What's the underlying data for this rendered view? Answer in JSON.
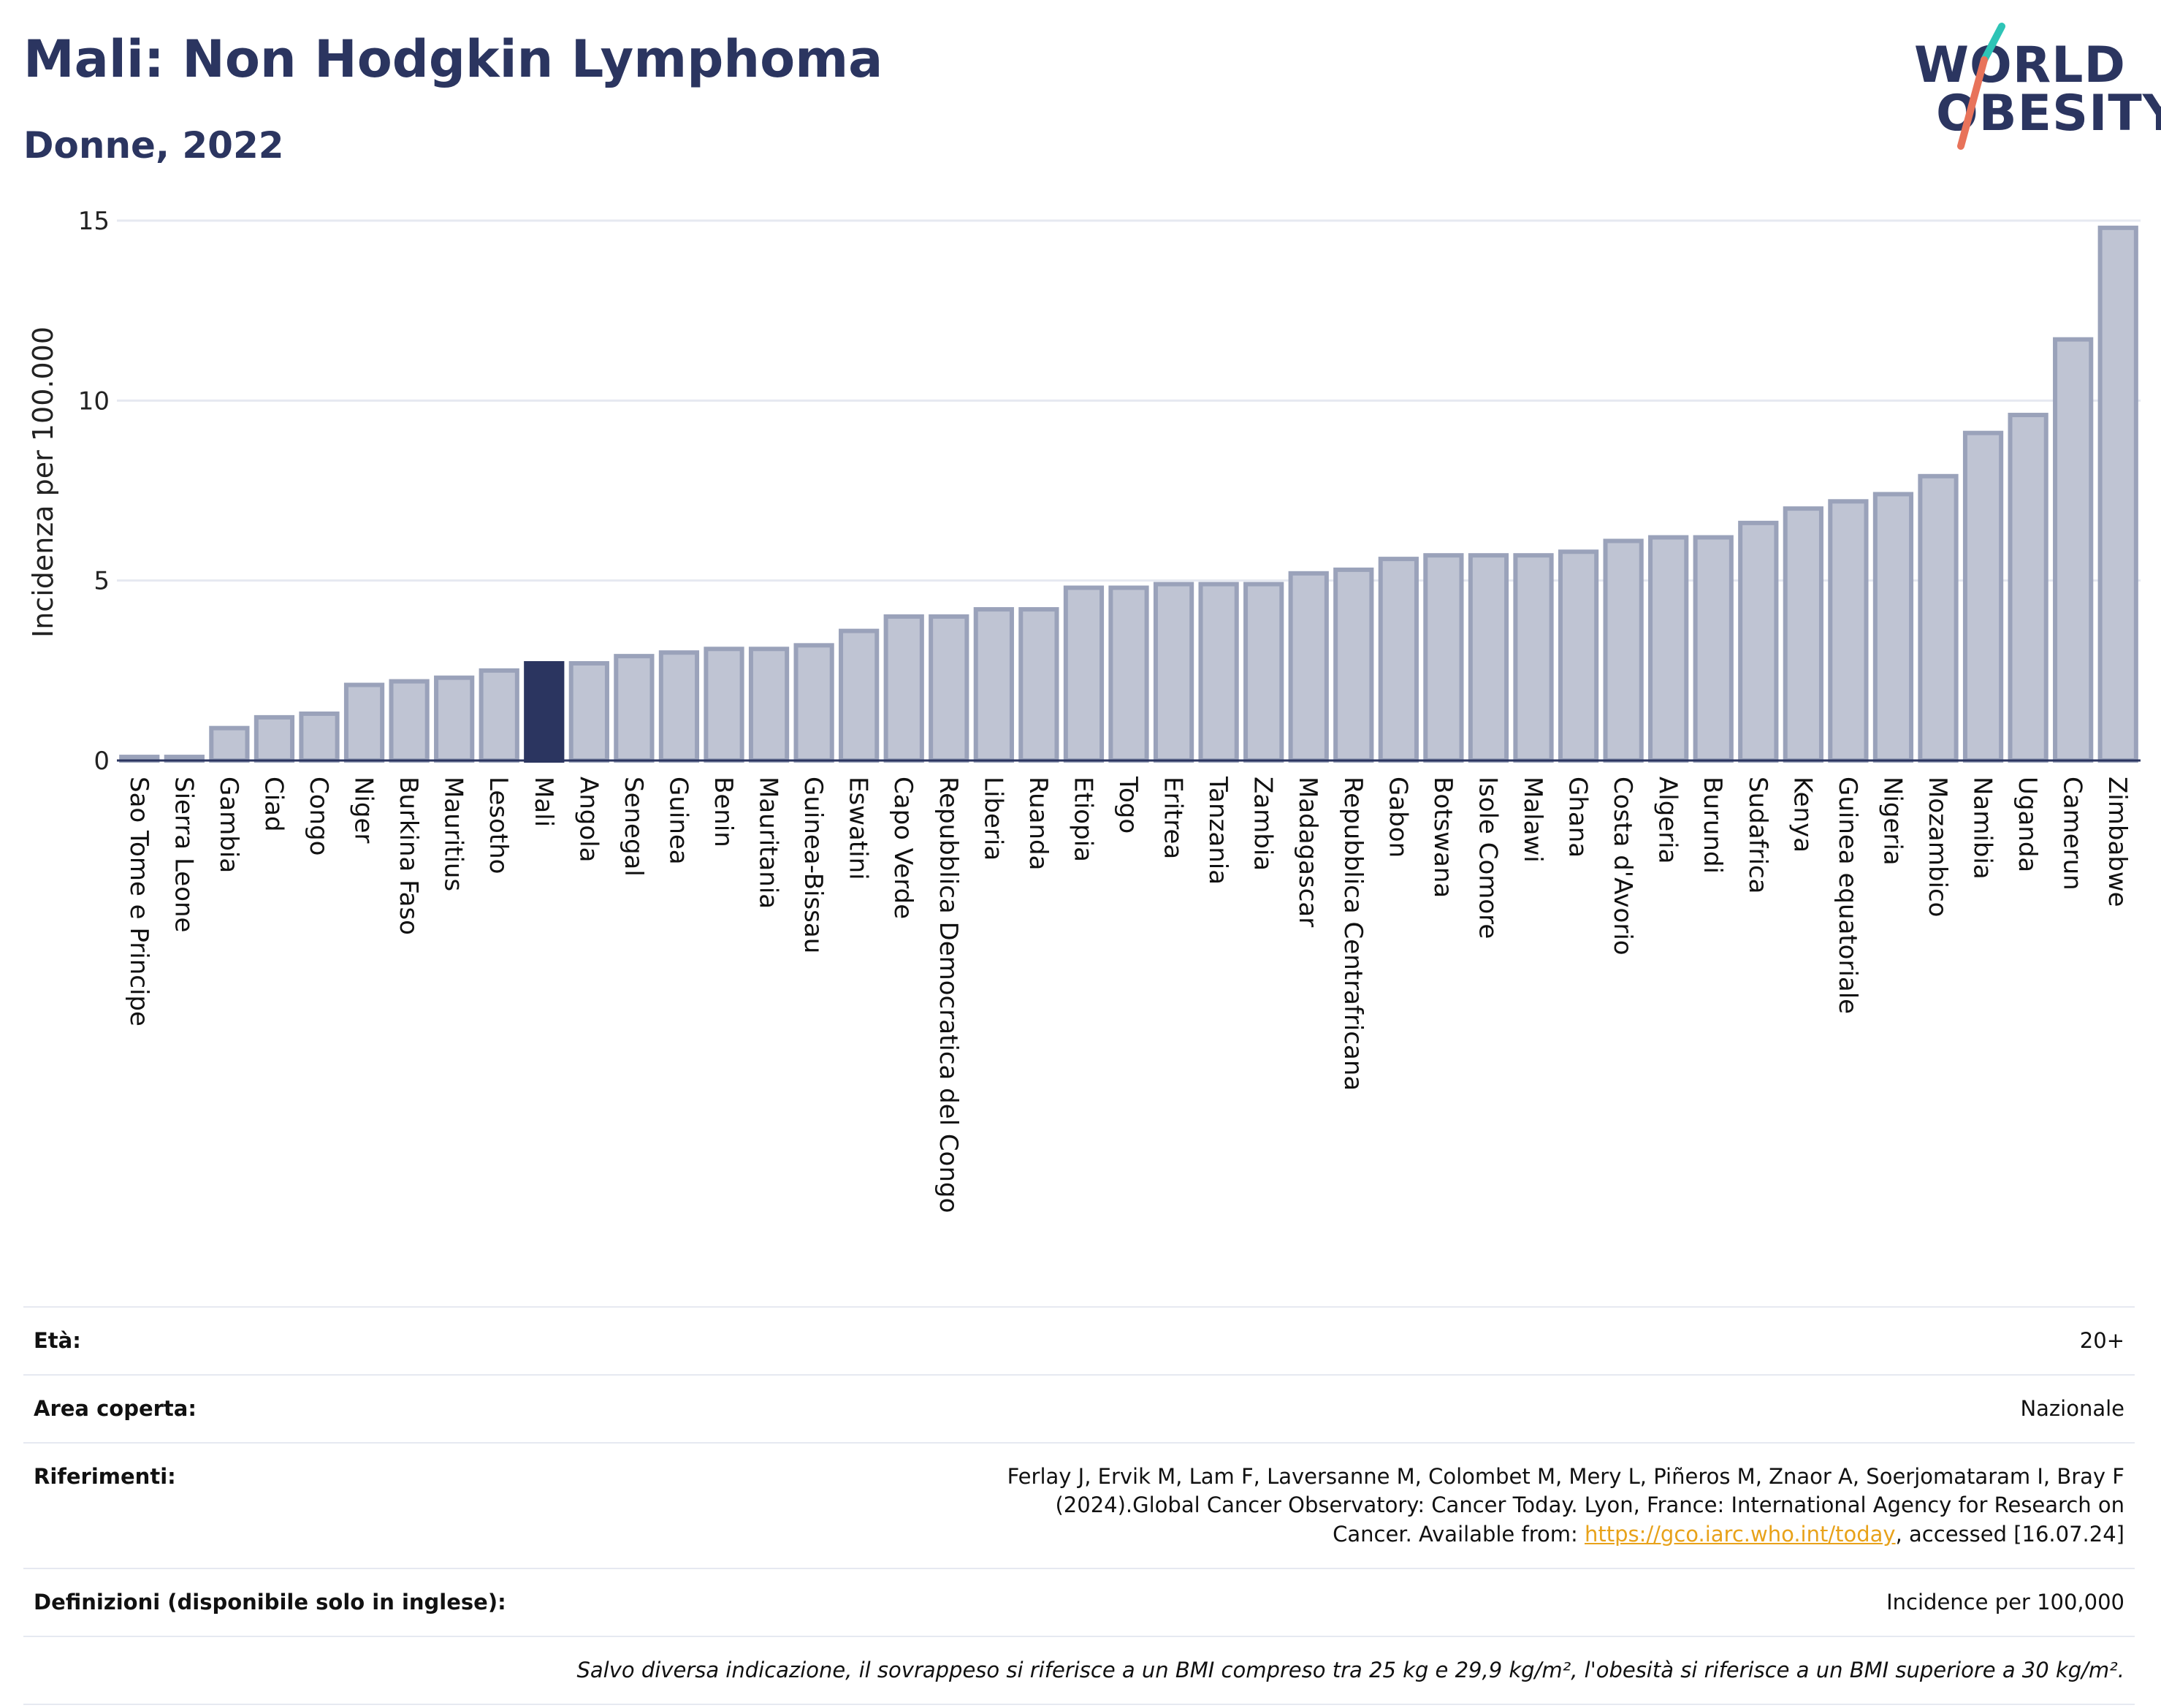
{
  "header": {
    "title": "Mali: Non Hodgkin Lymphoma",
    "subtitle": "Donne, 2022"
  },
  "logo": {
    "line1": "WORLD",
    "line2": "OBESITY",
    "slash_colors": [
      "#2ec4b6",
      "#e8735a"
    ]
  },
  "chart_data": {
    "type": "bar",
    "ylabel": "Incidenza per 100.000",
    "xlabel": "",
    "ylim": [
      0,
      15
    ],
    "yticks": [
      0,
      5,
      10,
      15
    ],
    "grid": true,
    "highlight": "Mali",
    "colors": {
      "bar_fill": "#bfc4d3",
      "bar_edge": "#9aa2ba",
      "highlight_fill": "#2b3560",
      "grid": "#e6e9f1",
      "axis": "#2b3560"
    },
    "categories": [
      "Sao Tome e Principe",
      "Sierra Leone",
      "Gambia",
      "Ciad",
      "Congo",
      "Niger",
      "Burkina Faso",
      "Mauritius",
      "Lesotho",
      "Mali",
      "Angola",
      "Senegal",
      "Guinea",
      "Benin",
      "Mauritania",
      "Guinea-Bissau",
      "Eswatini",
      "Capo Verde",
      "Repubblica Democratica del Congo",
      "Liberia",
      "Ruanda",
      "Etiopia",
      "Togo",
      "Eritrea",
      "Tanzania",
      "Zambia",
      "Madagascar",
      "Repubblica Centrafricana",
      "Gabon",
      "Botswana",
      "Isole Comore",
      "Malawi",
      "Ghana",
      "Costa d'Avorio",
      "Algeria",
      "Burundi",
      "Sudafrica",
      "Kenya",
      "Guinea equatoriale",
      "Nigeria",
      "Mozambico",
      "Namibia",
      "Uganda",
      "Camerun",
      "Zimbabwe"
    ],
    "values": [
      0.1,
      0.1,
      0.9,
      1.2,
      1.3,
      2.1,
      2.2,
      2.3,
      2.5,
      2.7,
      2.7,
      2.9,
      3.0,
      3.1,
      3.1,
      3.2,
      3.6,
      4.0,
      4.0,
      4.2,
      4.2,
      4.8,
      4.8,
      4.9,
      4.9,
      4.9,
      5.2,
      5.3,
      5.6,
      5.7,
      5.7,
      5.7,
      5.8,
      6.1,
      6.2,
      6.2,
      6.6,
      7.0,
      7.2,
      7.4,
      7.9,
      9.1,
      9.6,
      11.7,
      14.8
    ]
  },
  "meta": {
    "age_label": "Età:",
    "age_value": "20+",
    "area_label": "Area coperta:",
    "area_value": "Nazionale",
    "ref_label": "Riferimenti:",
    "ref_text1": "Ferlay J, Ervik M, Lam F, Laversanne M, Colombet M, Mery L, Piñeros M, Znaor A, Soerjomataram I, Bray F (2024).Global Cancer Observatory: Cancer Today. Lyon, France: International Agency for Research on Cancer. Available from: ",
    "ref_link": "https://gco.iarc.who.int/today",
    "ref_text2": ", accessed [16.07.24]",
    "def_label": "Definizioni (disponibile solo in inglese):",
    "def_value": "Incidence per 100,000",
    "note": "Salvo diversa indicazione, il sovrappeso si riferisce a un BMI compreso tra 25 kg e 29,9 kg/m², l'obesità si riferisce a un BMI superiore a 30 kg/m²."
  }
}
